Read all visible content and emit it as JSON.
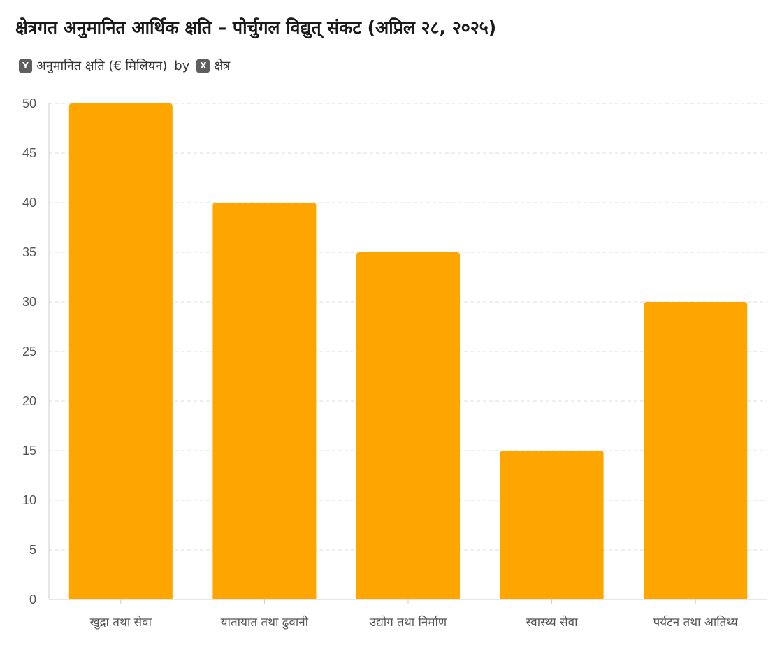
{
  "chart_data": {
    "type": "bar",
    "title": "क्षेत्रगत अनुमानित आर्थिक क्षति – पोर्चुगल विद्युत् संकट (अप्रिल २८, २०२५)",
    "legend": {
      "y_badge": "Y",
      "y_label": "अनुमानित क्षति (€ मिलियन)",
      "by_text": "by",
      "x_badge": "X",
      "x_label": "क्षेत्र"
    },
    "categories": [
      "खुद्रा तथा सेवा",
      "यातायात तथा ढुवानी",
      "उद्योग तथा निर्माण",
      "स्वास्थ्य सेवा",
      "पर्यटन तथा आतिथ्य"
    ],
    "values": [
      50,
      40,
      35,
      15,
      30
    ],
    "ylim": [
      0,
      50
    ],
    "yticks": [
      0,
      5,
      10,
      15,
      20,
      25,
      30,
      35,
      40,
      45,
      50
    ],
    "grid": true,
    "bar_color": "#FFA500",
    "grid_color": "#dddddd",
    "axis_color": "#cccccc"
  }
}
